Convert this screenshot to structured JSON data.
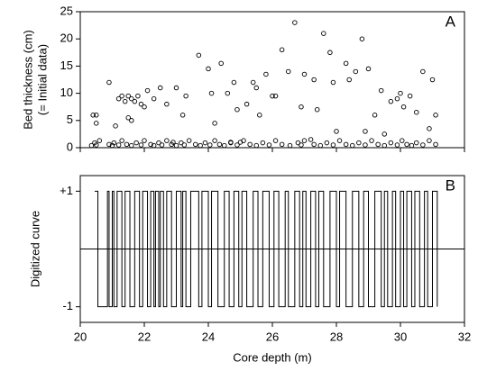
{
  "chart_data": [
    {
      "type": "scatter",
      "ylabel": [
        "Bed thickness (cm)",
        "(= Initial data)"
      ],
      "panel_label": "A",
      "x": [
        20.4,
        20.5,
        20.5,
        20.9,
        21.1,
        21.2,
        21.3,
        21.4,
        21.5,
        21.6,
        21.7,
        21.8,
        21.9,
        22.0,
        22.1,
        21.5,
        21.6,
        22.5,
        22.3,
        22.7,
        23.0,
        23.2,
        23.3,
        23.7,
        24.0,
        24.1,
        24.2,
        24.4,
        24.6,
        24.8,
        24.9,
        25.2,
        25.4,
        25.5,
        25.6,
        25.8,
        26.0,
        26.1,
        26.3,
        26.5,
        26.7,
        26.9,
        27.0,
        27.3,
        27.4,
        27.6,
        27.8,
        27.9,
        28.0,
        28.3,
        28.4,
        28.6,
        28.8,
        29.0,
        29.2,
        29.4,
        29.5,
        29.7,
        29.9,
        30.0,
        30.1,
        30.3,
        30.5,
        30.7,
        30.9,
        31.0,
        31.1,
        28.9,
        25.0,
        27.2,
        22.9,
        24.7,
        20.35,
        20.45,
        20.5,
        20.6,
        20.9,
        21.0,
        21.05,
        21.2,
        21.3,
        21.45,
        21.6,
        21.75,
        21.9,
        22.0,
        22.2,
        22.3,
        22.45,
        22.55,
        22.7,
        22.85,
        23.0,
        23.15,
        23.25,
        23.4,
        23.6,
        23.75,
        23.9,
        24.05,
        24.2,
        24.35,
        24.5,
        24.7,
        24.9,
        25.1,
        25.3,
        25.5,
        25.7,
        25.9,
        26.1,
        26.3,
        26.55,
        26.8,
        26.9,
        27.0,
        27.3,
        27.5,
        27.7,
        27.9,
        28.1,
        28.3,
        28.5,
        28.7,
        28.9,
        29.1,
        29.3,
        29.5,
        29.7,
        29.9,
        30.05,
        30.2,
        30.35,
        30.5,
        30.7,
        30.9,
        31.1
      ],
      "values": [
        6,
        6,
        4.5,
        12,
        4,
        9,
        9.5,
        8.5,
        9.5,
        9,
        8.5,
        9.5,
        8,
        7.5,
        10.5,
        5.5,
        5,
        11,
        9,
        8,
        11,
        6,
        9.5,
        17,
        14.5,
        10,
        4.5,
        15.5,
        10,
        12,
        7,
        8,
        12,
        11,
        6,
        13.5,
        9.5,
        9.5,
        18,
        14,
        23,
        7.5,
        13.5,
        12.5,
        7,
        21,
        17.5,
        12,
        3,
        15.5,
        12.5,
        14,
        20,
        14.5,
        6,
        10.5,
        2.5,
        8.5,
        9,
        10,
        7.5,
        9.5,
        6.5,
        14,
        3.5,
        12.5,
        6,
        3,
        1,
        1.5,
        1,
        1,
        0.4,
        0.9,
        0.5,
        1.3,
        0.6,
        0.4,
        0.9,
        0.5,
        1.3,
        0.6,
        0.4,
        0.9,
        0.5,
        1.3,
        0.6,
        0.4,
        0.9,
        0.5,
        1.3,
        0.6,
        0.4,
        0.9,
        0.5,
        1.3,
        0.6,
        0.4,
        0.9,
        0.5,
        1.3,
        0.6,
        0.4,
        0.9,
        0.5,
        1.3,
        0.6,
        0.4,
        0.9,
        0.5,
        1.3,
        0.6,
        0.4,
        0.9,
        0.5,
        1.3,
        0.6,
        0.4,
        0.9,
        0.5,
        1.3,
        0.6,
        0.4,
        0.9,
        0.5,
        1.3,
        0.6,
        0.4,
        0.9,
        0.5,
        1.3,
        0.6,
        0.4,
        0.9,
        0.5,
        1.3,
        0.6
      ],
      "xlim": [
        20,
        32
      ],
      "xticks": [
        20,
        22,
        24,
        26,
        28,
        30,
        32
      ],
      "ylim": [
        0,
        25
      ],
      "yticks": [
        0,
        5,
        10,
        15,
        20,
        25
      ],
      "color": "#000000"
    },
    {
      "type": "step",
      "ylabel": [
        "Digitized curve"
      ],
      "panel_label": "B",
      "xlabel": "Core depth (m)",
      "hline": 0,
      "x": [
        20.45,
        20.55,
        20.85,
        20.9,
        21.0,
        21.05,
        21.15,
        21.3,
        21.4,
        21.55,
        21.7,
        21.85,
        21.95,
        22.1,
        22.2,
        22.3,
        22.35,
        22.45,
        22.5,
        22.6,
        22.7,
        22.85,
        23.0,
        23.15,
        23.2,
        23.3,
        23.45,
        23.7,
        23.8,
        24.0,
        24.1,
        24.3,
        24.5,
        24.65,
        24.8,
        24.95,
        25.05,
        25.2,
        25.4,
        25.55,
        25.7,
        25.9,
        26.05,
        26.2,
        26.4,
        26.5,
        26.7,
        26.85,
        26.95,
        27.05,
        27.2,
        27.35,
        27.45,
        27.6,
        27.8,
        28.0,
        28.1,
        28.3,
        28.5,
        28.7,
        28.85,
        29.0,
        29.2,
        29.4,
        29.5,
        29.6,
        29.75,
        29.85,
        30.0,
        30.1,
        30.2,
        30.35,
        30.45,
        30.6,
        30.75,
        30.85,
        31.0,
        31.15
      ],
      "values": [
        1,
        -1,
        1,
        -1,
        1,
        -1,
        1,
        -1,
        1,
        -1,
        1,
        -1,
        1,
        -1,
        1,
        -1,
        1,
        -1,
        1,
        -1,
        1,
        -1,
        1,
        -1,
        1,
        -1,
        1,
        -1,
        1,
        -1,
        1,
        -1,
        1,
        -1,
        1,
        -1,
        1,
        -1,
        1,
        -1,
        1,
        -1,
        1,
        -1,
        1,
        -1,
        1,
        -1,
        1,
        -1,
        1,
        -1,
        1,
        -1,
        1,
        -1,
        1,
        -1,
        1,
        -1,
        1,
        -1,
        1,
        -1,
        1,
        -1,
        1,
        -1,
        1,
        -1,
        1,
        -1,
        1,
        -1,
        1,
        -1,
        1,
        -1
      ],
      "xlim": [
        20,
        32
      ],
      "xticks": [
        20,
        22,
        24,
        26,
        28,
        30,
        32
      ],
      "ylim": [
        -1.27,
        1.27
      ],
      "yticks": [
        {
          "value": 1,
          "label": "+1"
        },
        -1
      ],
      "color": "#000000"
    }
  ]
}
